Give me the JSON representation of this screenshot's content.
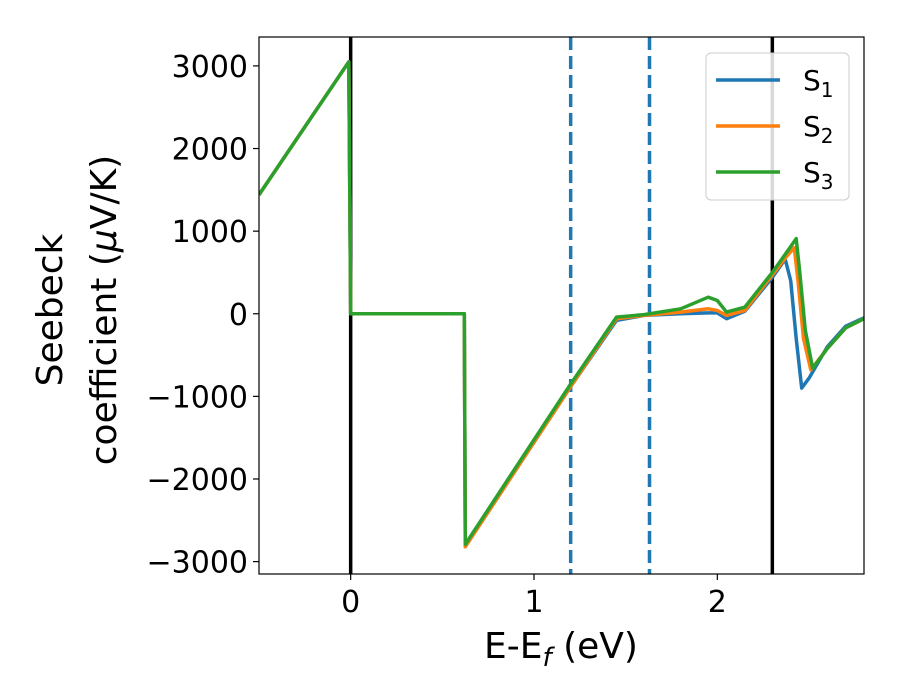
{
  "chart_data": {
    "type": "line",
    "title": "",
    "xlabel": "E-E",
    "xlabel_sub": "f",
    "xlabel_unit": " (eV)",
    "ylabel_line1": "Seebeck",
    "ylabel_line2": "coefficient  (",
    "ylabel_mu": "μ",
    "ylabel_unit": "V/K)",
    "xlim": [
      -0.5,
      2.8
    ],
    "ylim": [
      -3150,
      3350
    ],
    "xticks": [
      0,
      1,
      2
    ],
    "xtick_labels": [
      "0",
      "1",
      "2"
    ],
    "yticks": [
      -3000,
      -2000,
      -1000,
      0,
      1000,
      2000,
      3000
    ],
    "ytick_labels": [
      "−3000",
      "−2000",
      "−1000",
      "0",
      "1000",
      "2000",
      "3000"
    ],
    "grid": false,
    "legend_position": "top-right",
    "vlines": [
      {
        "x": 0.0,
        "style": "solid",
        "color": "#000000"
      },
      {
        "x": 2.3,
        "style": "solid",
        "color": "#000000"
      },
      {
        "x": 1.2,
        "style": "dashed",
        "color": "#1f77b4"
      },
      {
        "x": 1.63,
        "style": "dashed",
        "color": "#1f77b4"
      }
    ],
    "series": [
      {
        "name": "S",
        "name_sub": "1",
        "color": "#1f77b4",
        "x": [
          -0.5,
          -0.01,
          0.0,
          0.01,
          0.62,
          0.625,
          1.2,
          1.45,
          1.6,
          1.8,
          1.95,
          2.0,
          2.05,
          2.15,
          2.3,
          2.37,
          2.4,
          2.43,
          2.46,
          2.5,
          2.6,
          2.7,
          2.8
        ],
        "y": [
          1440,
          3050,
          0,
          0,
          0,
          -2820,
          -880,
          -80,
          -20,
          0,
          10,
          10,
          -60,
          30,
          440,
          660,
          400,
          -300,
          -900,
          -780,
          -400,
          -150,
          -50
        ]
      },
      {
        "name": "S",
        "name_sub": "2",
        "color": "#ff7f0e",
        "x": [
          -0.5,
          -0.01,
          0.0,
          0.01,
          0.62,
          0.625,
          1.2,
          1.45,
          1.6,
          1.8,
          1.95,
          2.0,
          2.05,
          2.15,
          2.3,
          2.38,
          2.42,
          2.44,
          2.47,
          2.51,
          2.6,
          2.7,
          2.8
        ],
        "y": [
          1440,
          3050,
          0,
          0,
          0,
          -2820,
          -880,
          -60,
          -20,
          20,
          60,
          40,
          -20,
          40,
          470,
          700,
          800,
          400,
          -300,
          -680,
          -420,
          -170,
          -60
        ]
      },
      {
        "name": "S",
        "name_sub": "3",
        "color": "#2ca02c",
        "x": [
          -0.5,
          -0.01,
          0.0,
          0.01,
          0.62,
          0.625,
          1.2,
          1.45,
          1.6,
          1.8,
          1.95,
          2.0,
          2.05,
          2.15,
          2.3,
          2.39,
          2.43,
          2.45,
          2.48,
          2.52,
          2.6,
          2.7,
          2.8
        ],
        "y": [
          1440,
          3050,
          0,
          0,
          0,
          -2790,
          -850,
          -40,
          -10,
          60,
          200,
          160,
          20,
          80,
          500,
          780,
          910,
          500,
          -200,
          -660,
          -420,
          -170,
          -60
        ]
      }
    ]
  }
}
